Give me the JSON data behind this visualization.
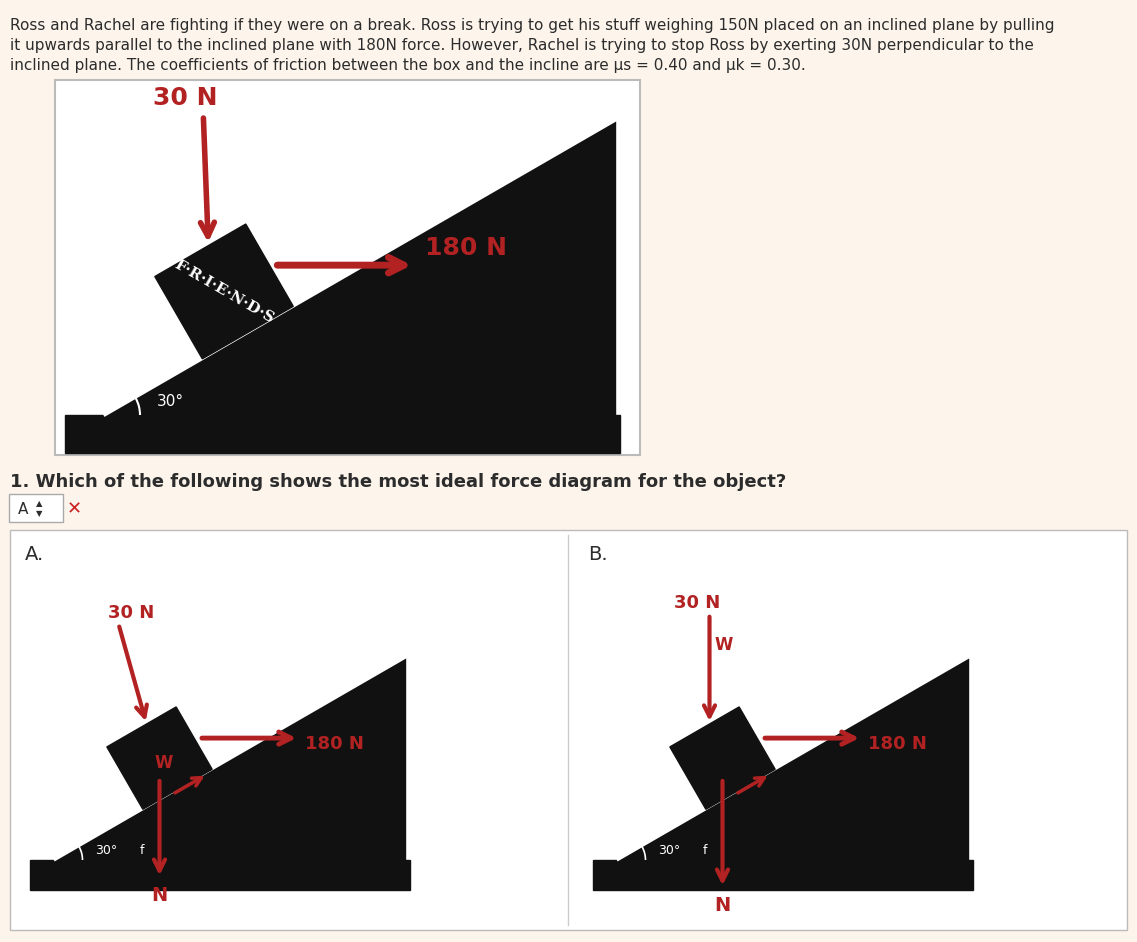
{
  "bg_color": "#fdf5ec",
  "white_color": "#ffffff",
  "black_color": "#111111",
  "red_color": "#b22222",
  "text_color": "#2c2c2c",
  "title_text_line1": "Ross and Rachel are fighting if they were on a break. Ross is trying to get his stuff weighing 150N placed on an inclined plane by pulling",
  "title_text_line2": "it upwards parallel to the inclined plane with 180N force. However, Rachel is trying to stop Ross by exerting 30N perpendicular to the",
  "title_text_line3": "inclined plane. The coefficients of friction between the box and the incline are μs = 0.40 and μk = 0.30.",
  "question_text": "1. Which of the following shows the most ideal force diagram for the object?",
  "label_A": "A.",
  "label_B": "B.",
  "friends_text": "F·R·I·E·N·D·S",
  "angle_label": "30°",
  "force_30N": "30 N",
  "force_180N": "180 N",
  "force_W": "W",
  "force_N": "N",
  "force_f": "f"
}
